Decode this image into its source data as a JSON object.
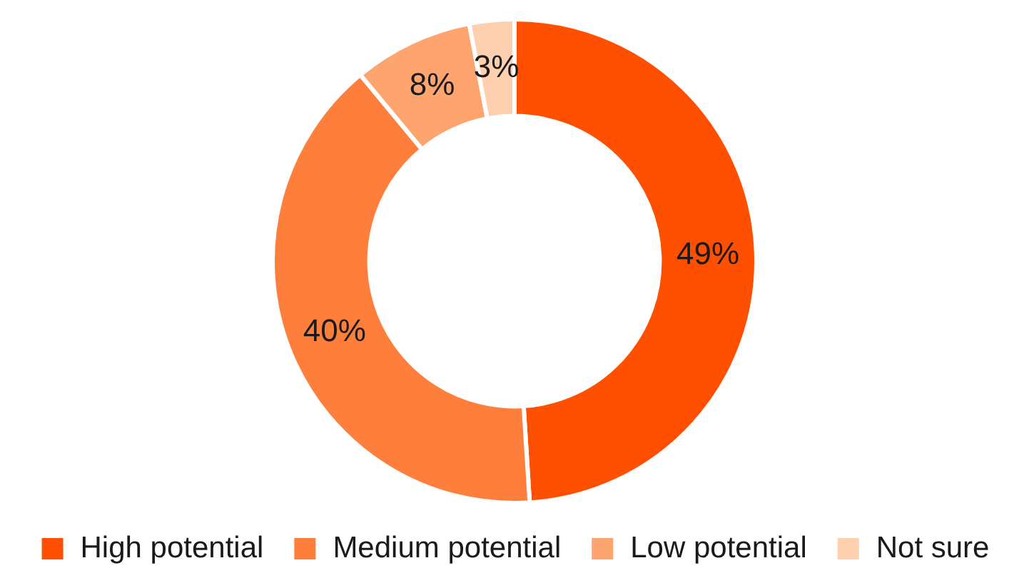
{
  "chart_data": {
    "type": "donut",
    "categories": [
      "High potential",
      "Medium potential",
      "Low potential",
      "Not sure"
    ],
    "values": [
      49,
      40,
      8,
      3
    ],
    "colors": [
      "#fe5000",
      "#fe7f3c",
      "#fea56f",
      "#fed0b0"
    ],
    "value_labels": [
      "49%",
      "40%",
      "8%",
      "3%"
    ],
    "legend": "bottom"
  }
}
